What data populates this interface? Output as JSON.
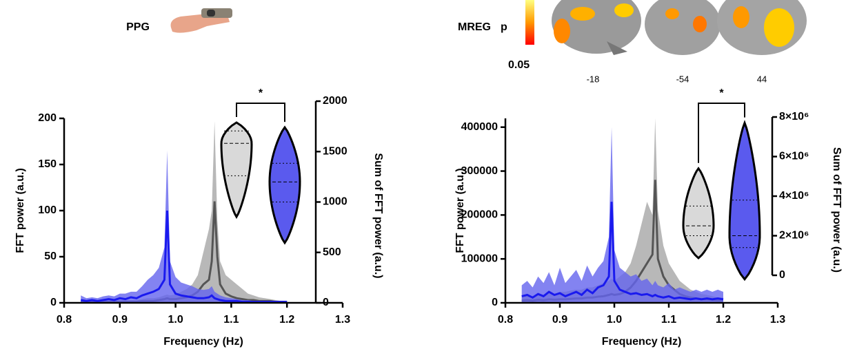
{
  "chart_data": [
    {
      "type": "line",
      "title": "PPG",
      "x_label": "Frequency (Hz)",
      "y_label": "FFT power (a.u.)",
      "y2_label": "Sum of FFT power (a.u.)",
      "xlim": [
        0.8,
        1.3
      ],
      "xticks": [
        0.8,
        0.9,
        {
          "value": 1,
          "label": "1.0"
        },
        1.1,
        1.2,
        1.3
      ],
      "ylim": [
        0,
        200
      ],
      "yticks": [
        0,
        50,
        100,
        150,
        200
      ],
      "y2lim": [
        0,
        2000
      ],
      "y2ticks": [
        0,
        500,
        1000,
        1500,
        2000
      ],
      "x": [
        0.83,
        0.84,
        0.85,
        0.86,
        0.87,
        0.88,
        0.89,
        0.9,
        0.91,
        0.92,
        0.93,
        0.94,
        0.95,
        0.96,
        0.97,
        0.98,
        0.985,
        0.99,
        1.0,
        1.01,
        1.02,
        1.03,
        1.04,
        1.05,
        1.06,
        1.065,
        1.07,
        1.075,
        1.08,
        1.09,
        1.1,
        1.11,
        1.12,
        1.13,
        1.14,
        1.15,
        1.16,
        1.17,
        1.18,
        1.19,
        1.2
      ],
      "series": [
        {
          "color": "#555555",
          "band_color": "#a6a6a6",
          "values": [
            1,
            1,
            1,
            1,
            1,
            1,
            1,
            1,
            1,
            1,
            1,
            2,
            2,
            2,
            3,
            4,
            5,
            4,
            4,
            5,
            6,
            8,
            12,
            20,
            25,
            45,
            110,
            50,
            20,
            10,
            7,
            5,
            4,
            3,
            3,
            2,
            2,
            2,
            1,
            1,
            1
          ],
          "upper": [
            2,
            2,
            2,
            2,
            2,
            2,
            2,
            3,
            3,
            3,
            3,
            4,
            5,
            5,
            6,
            8,
            9,
            8,
            9,
            12,
            15,
            20,
            30,
            55,
            80,
            100,
            197,
            90,
            45,
            30,
            25,
            20,
            15,
            10,
            8,
            6,
            5,
            4,
            3,
            2,
            2
          ]
        },
        {
          "color": "#1a1aee",
          "band_color": "#6464ee",
          "values": [
            3,
            2,
            3,
            2,
            3,
            4,
            3,
            5,
            4,
            6,
            5,
            8,
            10,
            12,
            15,
            25,
            100,
            20,
            10,
            8,
            7,
            6,
            5,
            5,
            6,
            8,
            5,
            4,
            3,
            2,
            2,
            2,
            1,
            1,
            1,
            1,
            1,
            1,
            1,
            1,
            1
          ],
          "upper": [
            8,
            5,
            6,
            5,
            7,
            8,
            7,
            10,
            10,
            12,
            12,
            18,
            25,
            30,
            38,
            60,
            165,
            45,
            28,
            22,
            20,
            18,
            15,
            14,
            15,
            18,
            12,
            10,
            8,
            6,
            5,
            4,
            3,
            3,
            2,
            2,
            2,
            2,
            2,
            2,
            2
          ]
        }
      ],
      "violins": [
        {
          "color": "#d9d9d9",
          "min": 853,
          "q1": 1260,
          "median": 1582,
          "q3": 1705,
          "max": 1788
        },
        {
          "color": "#5a5aee",
          "min": 595,
          "q1": 1000,
          "median": 1199,
          "q3": 1384,
          "max": 1740
        }
      ],
      "significance": "*"
    },
    {
      "type": "line",
      "title": "MREG",
      "x_label": "Frequency (Hz)",
      "y_label": "FFT power (a.u.)",
      "y2_label": "Sum of FFT power (a.u.)",
      "xlim": [
        0.8,
        1.3
      ],
      "xticks": [
        0.8,
        0.9,
        {
          "value": 1,
          "label": "1.0"
        },
        1.1,
        1.2,
        1.3
      ],
      "ylim": [
        0,
        420000
      ],
      "yticks": [
        0,
        100000,
        200000,
        300000,
        400000
      ],
      "y2lim": [
        0,
        8000000
      ],
      "y2ticks": [
        0,
        {
          "value": 2000000,
          "label": "2×10⁶"
        },
        {
          "value": 4000000,
          "label": "4×10⁶"
        },
        {
          "value": 6000000,
          "label": "6×10⁶"
        },
        {
          "value": 8000000,
          "label": "8×10⁶"
        }
      ],
      "x": [
        0.83,
        0.84,
        0.85,
        0.86,
        0.87,
        0.88,
        0.89,
        0.9,
        0.91,
        0.92,
        0.93,
        0.94,
        0.95,
        0.96,
        0.97,
        0.98,
        0.99,
        0.995,
        1.0,
        1.01,
        1.02,
        1.03,
        1.04,
        1.05,
        1.06,
        1.07,
        1.075,
        1.08,
        1.09,
        1.1,
        1.11,
        1.12,
        1.13,
        1.14,
        1.15,
        1.16,
        1.17,
        1.18,
        1.19,
        1.2
      ],
      "series": [
        {
          "color": "#555555",
          "band_color": "#a6a6a6",
          "values": [
            5000,
            6000,
            5000,
            7000,
            6000,
            8000,
            7000,
            8000,
            8000,
            9000,
            10000,
            10000,
            12000,
            12000,
            14000,
            15000,
            18000,
            20000,
            18000,
            20000,
            25000,
            35000,
            50000,
            70000,
            90000,
            110000,
            280000,
            100000,
            60000,
            40000,
            30000,
            20000,
            15000,
            12000,
            10000,
            8000,
            8000,
            7000,
            6000,
            6000
          ],
          "upper": [
            15000,
            18000,
            15000,
            20000,
            18000,
            22000,
            20000,
            25000,
            25000,
            28000,
            30000,
            30000,
            35000,
            35000,
            40000,
            45000,
            50000,
            55000,
            50000,
            60000,
            70000,
            90000,
            130000,
            180000,
            230000,
            200000,
            420000,
            210000,
            130000,
            90000,
            70000,
            50000,
            40000,
            30000,
            25000,
            20000,
            18000,
            15000,
            12000,
            12000
          ]
        },
        {
          "color": "#1a1aee",
          "band_color": "#6464ee",
          "values": [
            15000,
            18000,
            12000,
            20000,
            15000,
            25000,
            18000,
            22000,
            15000,
            20000,
            25000,
            18000,
            30000,
            22000,
            35000,
            40000,
            60000,
            230000,
            50000,
            30000,
            25000,
            20000,
            22000,
            18000,
            20000,
            15000,
            18000,
            15000,
            12000,
            15000,
            10000,
            12000,
            10000,
            8000,
            10000,
            8000,
            10000,
            8000,
            10000,
            8000
          ],
          "upper": [
            40000,
            50000,
            35000,
            60000,
            45000,
            70000,
            40000,
            80000,
            45000,
            60000,
            75000,
            50000,
            85000,
            60000,
            80000,
            95000,
            150000,
            400000,
            120000,
            80000,
            70000,
            60000,
            65000,
            50000,
            55000,
            40000,
            50000,
            40000,
            35000,
            45000,
            30000,
            35000,
            30000,
            25000,
            30000,
            25000,
            30000,
            25000,
            30000,
            25000
          ]
        }
      ],
      "violins": [
        {
          "color": "#d9d9d9",
          "min": 870000,
          "q1": 2000000,
          "median": 2500000,
          "q3": 3500000,
          "max": 5400000
        },
        {
          "color": "#5a5aee",
          "min": -200000,
          "q1": 1400000,
          "median": 2000000,
          "q3": 3800000,
          "max": 7700000
        }
      ],
      "significance": "*",
      "brain_map": {
        "p_label": "p",
        "p_value": 0.05,
        "slices": [
          -18,
          -54,
          44
        ]
      }
    }
  ]
}
